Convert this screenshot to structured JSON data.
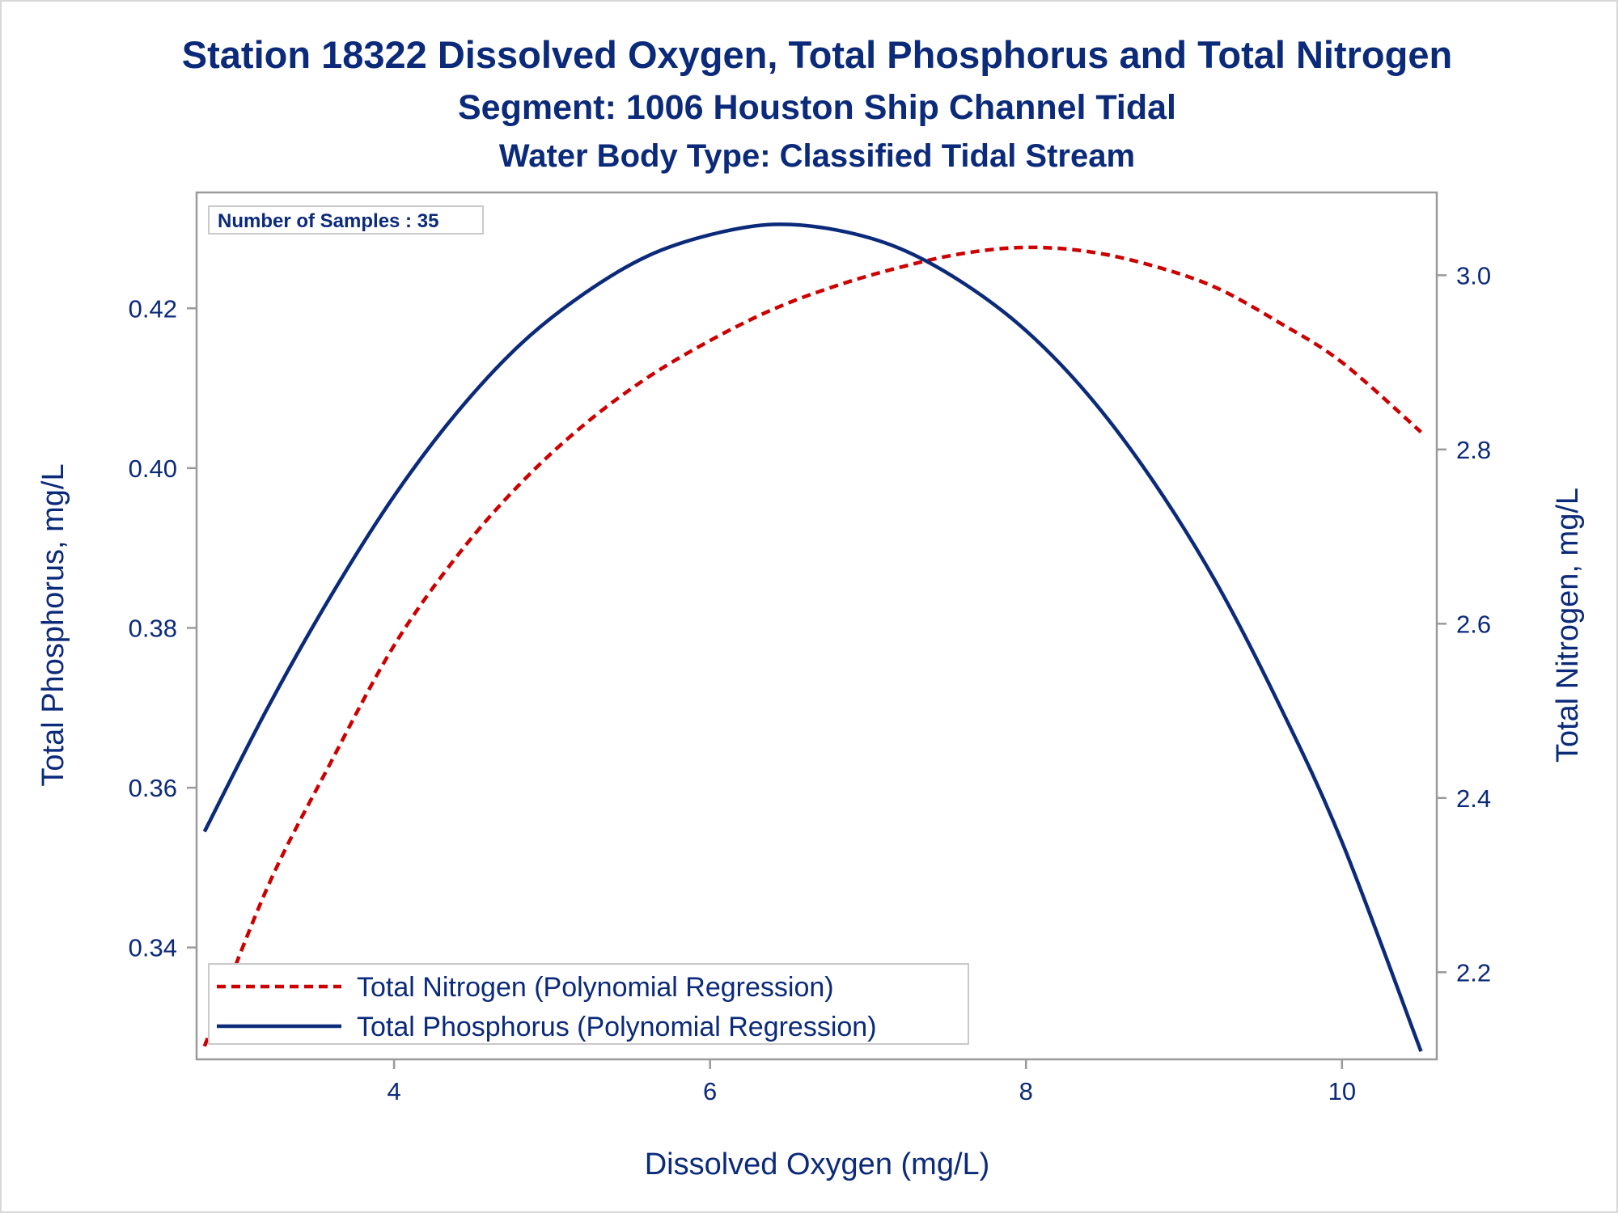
{
  "chart_data": {
    "type": "line",
    "title": "Station 18322  Dissolved Oxygen, Total Phosphorus and Total Nitrogen",
    "subtitle": "Segment: 1006  Houston Ship Channel Tidal",
    "subtitle2": "Water Body Type: Classified Tidal Stream",
    "xlabel": "Dissolved Oxygen (mg/L)",
    "ylabel": "Total Phosphorus, mg/L",
    "y2label": "Total Nitrogen, mg/L",
    "xlim": [
      2.75,
      10.6
    ],
    "ylim": [
      0.326,
      0.4345
    ],
    "y2lim": [
      2.1,
      3.095
    ],
    "x_ticks": [
      "4",
      "6",
      "8",
      "10"
    ],
    "y_ticks": [
      "0.34",
      "0.36",
      "0.38",
      "0.40",
      "0.42"
    ],
    "y2_ticks": [
      "2.2",
      "2.4",
      "2.6",
      "2.8",
      "3.0"
    ],
    "grid": false,
    "legend_position": "bottom-left",
    "annotation": "Number of Samples : 35",
    "series": [
      {
        "name": "Total Nitrogen (Polynomial Regression)",
        "axis": "right",
        "style": "dashed",
        "color": "#cc0000",
        "x": [
          2.8,
          3.2,
          3.6,
          4.0,
          4.4,
          4.8,
          5.2,
          5.6,
          6.0,
          6.4,
          6.8,
          7.2,
          7.6,
          8.0,
          8.4,
          8.8,
          9.2,
          9.6,
          10.0,
          10.5
        ],
        "y": [
          2.115,
          2.298,
          2.441,
          2.575,
          2.678,
          2.761,
          2.828,
          2.882,
          2.925,
          2.961,
          2.988,
          3.009,
          3.025,
          3.032,
          3.027,
          3.011,
          2.986,
          2.946,
          2.9,
          2.82
        ]
      },
      {
        "name": "Total Phosphorus (Polynomial Regression)",
        "axis": "left",
        "style": "solid",
        "color": "#0b2a7a",
        "x": [
          2.8,
          3.2,
          3.6,
          4.0,
          4.4,
          4.8,
          5.2,
          5.6,
          6.0,
          6.4,
          6.8,
          7.2,
          7.6,
          8.0,
          8.4,
          8.8,
          9.2,
          9.6,
          10.0,
          10.5
        ],
        "y": [
          0.3545,
          0.37,
          0.384,
          0.3965,
          0.407,
          0.4155,
          0.4218,
          0.4265,
          0.4292,
          0.4305,
          0.4298,
          0.4275,
          0.4232,
          0.4172,
          0.409,
          0.3985,
          0.3858,
          0.3705,
          0.3532,
          0.327
        ]
      }
    ]
  }
}
